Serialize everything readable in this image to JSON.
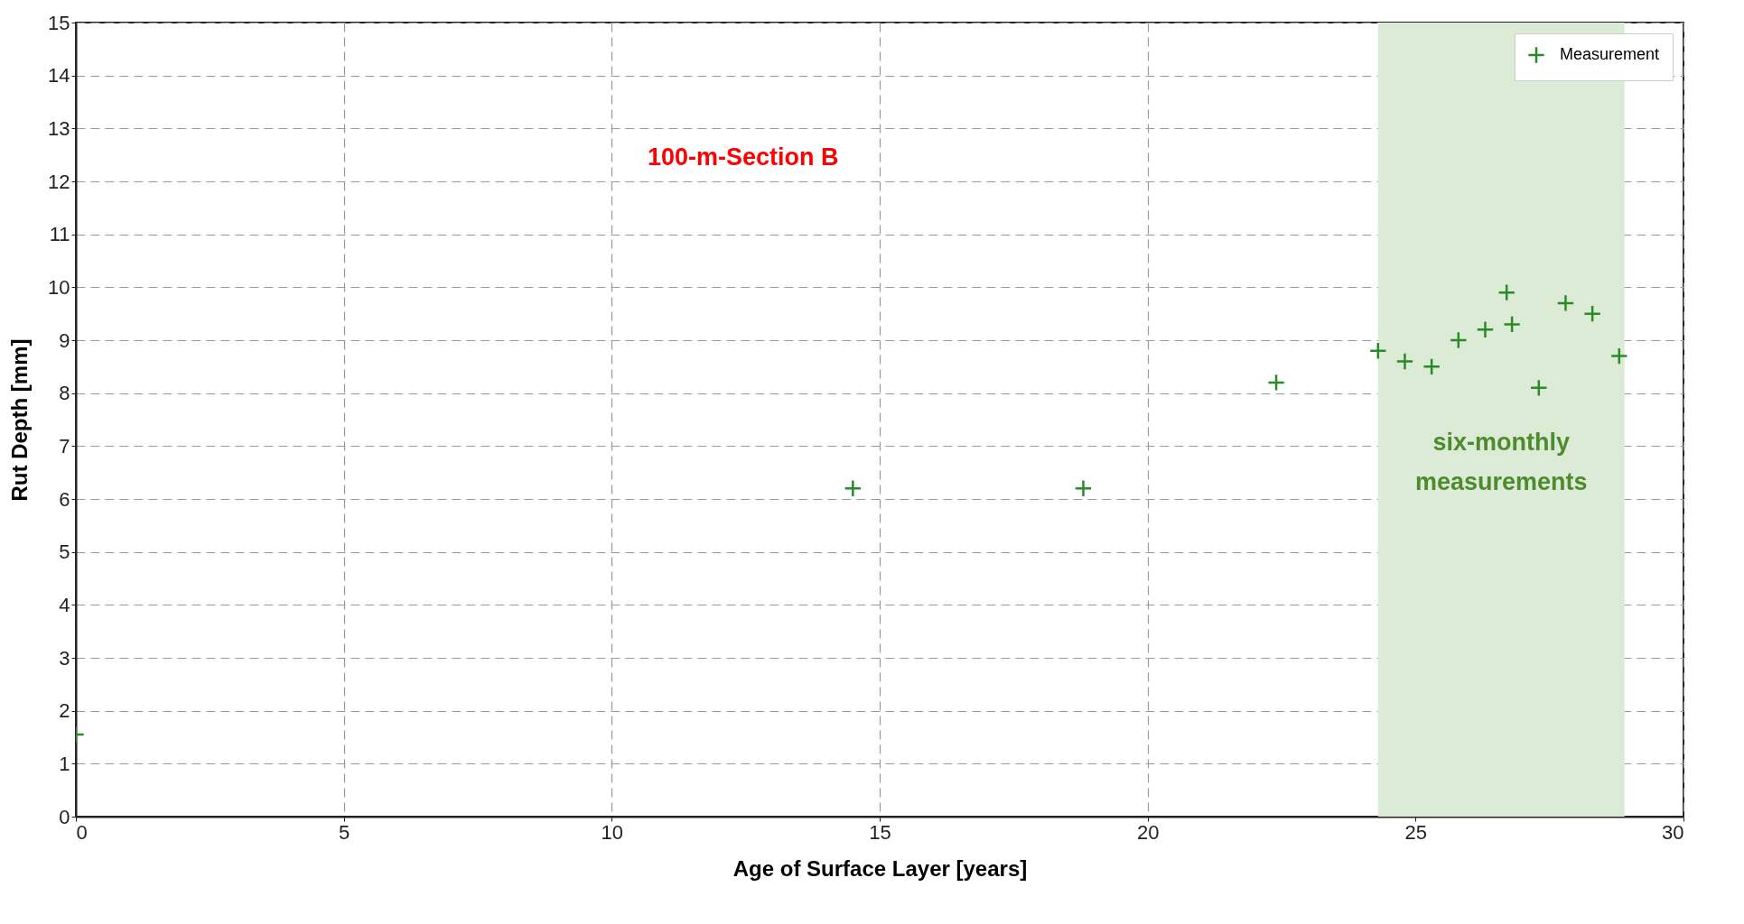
{
  "chart_data": {
    "type": "scatter",
    "xlabel": "Age of Surface Layer [years]",
    "ylabel": "Rut Depth [mm]",
    "x": [
      0,
      14.5,
      18.8,
      22.4,
      24.3,
      24.8,
      25.3,
      25.8,
      26.3,
      26.7,
      26.8,
      27.3,
      27.8,
      28.3,
      28.8
    ],
    "series": [
      {
        "name": "Measurement",
        "color": "#2a8a2a",
        "values": [
          1.55,
          6.2,
          6.2,
          8.2,
          8.8,
          8.6,
          8.5,
          9.0,
          9.2,
          9.9,
          9.3,
          8.1,
          9.7,
          9.5,
          8.7
        ]
      }
    ],
    "xlim": [
      0,
      30
    ],
    "xticks": [
      0,
      5,
      10,
      15,
      20,
      25,
      30
    ],
    "ylim": [
      0,
      15
    ],
    "yticks": [
      0,
      1,
      2,
      3,
      4,
      5,
      6,
      7,
      8,
      9,
      10,
      11,
      12,
      13,
      14,
      15
    ],
    "bands": [
      {
        "axis": "x",
        "from": 24.3,
        "to": 28.9,
        "label": "six-monthly measurements",
        "color": "#dcebd5"
      }
    ],
    "annotations": [
      "100-m-Section B"
    ],
    "grid": true,
    "legend": "top right",
    "marker": "cross"
  }
}
